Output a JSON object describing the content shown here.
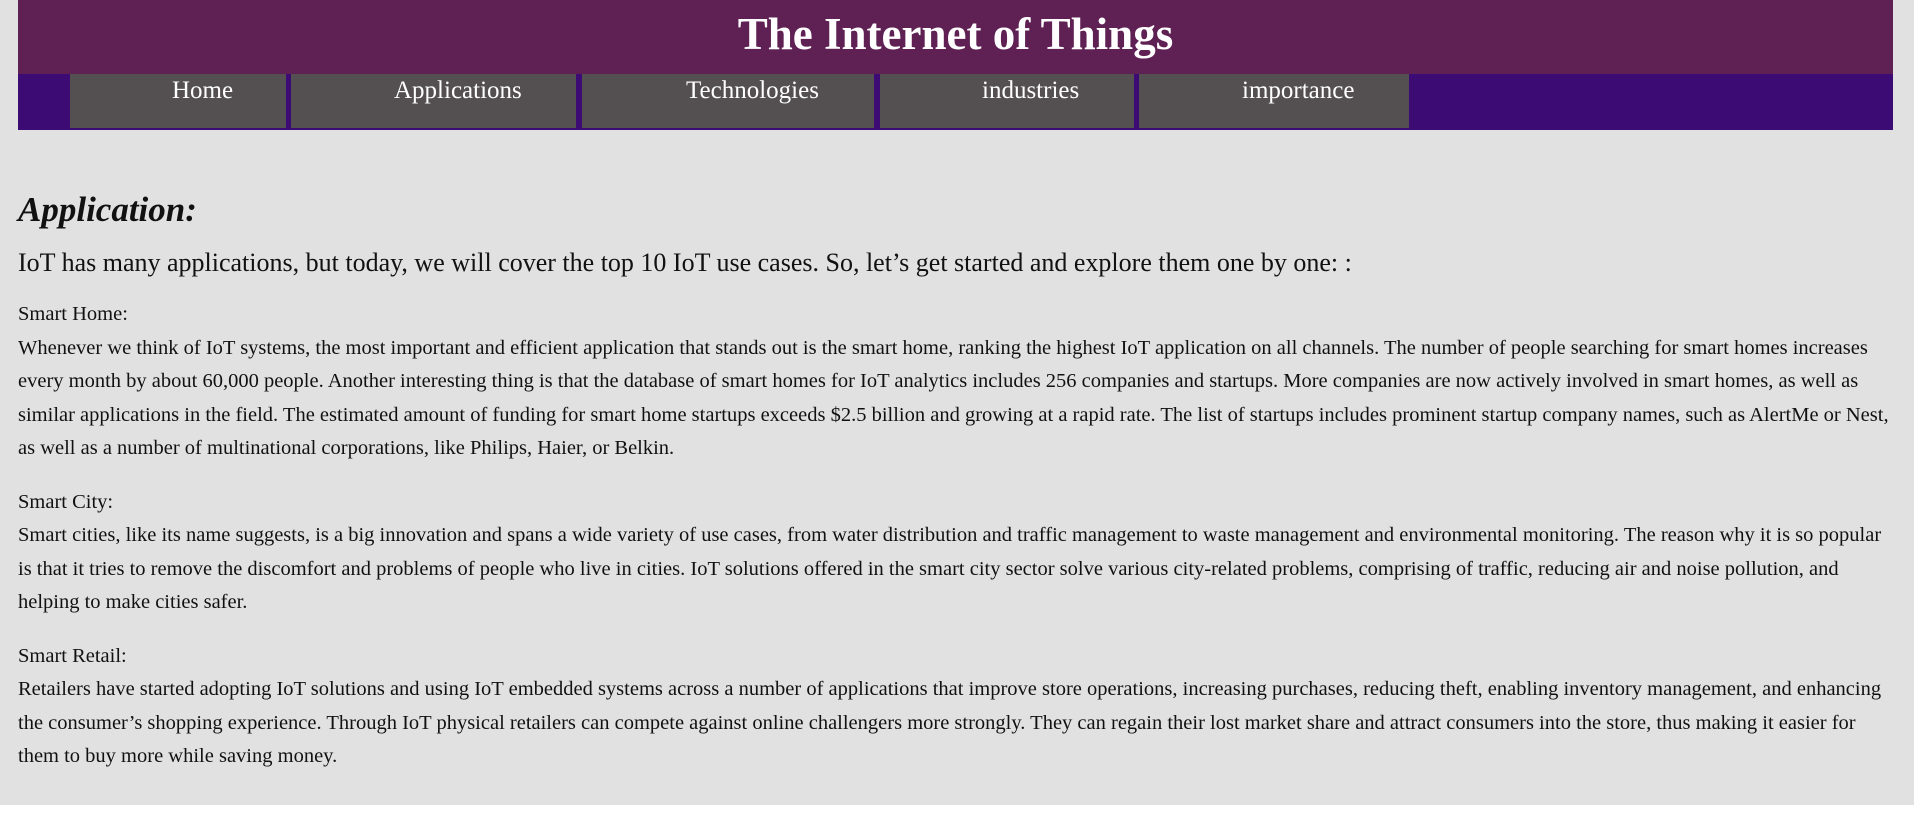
{
  "header": {
    "title": "The Internet of Things"
  },
  "nav": {
    "items": [
      {
        "label": "Home"
      },
      {
        "label": "Applications"
      },
      {
        "label": "Technologies"
      },
      {
        "label": "industries"
      },
      {
        "label": "importance"
      }
    ]
  },
  "colors": {
    "banner": "#5f2153",
    "navbar": "#3c0c74",
    "nav_item": "#545052",
    "page_background": "#e1e1e1"
  },
  "main": {
    "heading": "Application:",
    "intro": "IoT has many applications, but today, we will cover the top 10 IoT use cases. So, let’s get started and explore them one by one: :",
    "sections": [
      {
        "title": "Smart Home:",
        "text": "Whenever we think of IoT systems, the most important and efficient application that stands out is the smart home, ranking the highest IoT application on all channels. The number of people searching for smart homes increases every month by about 60,000 people. Another interesting thing is that the database of smart homes for IoT analytics includes 256 companies and startups. More companies are now actively involved in smart homes, as well as similar applications in the field. The estimated amount of funding for smart home startups exceeds $2.5 billion and growing at a rapid rate. The list of startups includes prominent startup company names, such as AlertMe or Nest, as well as a number of multinational corporations, like Philips, Haier, or Belkin."
      },
      {
        "title": "Smart City:",
        "text": "Smart cities, like its name suggests, is a big innovation and spans a wide variety of use cases, from water distribution and traffic management to waste management and environmental monitoring. The reason why it is so popular is that it tries to remove the discomfort and problems of people who live in cities. IoT solutions offered in the smart city sector solve various city-related problems, comprising of traffic, reducing air and noise pollution, and helping to make cities safer."
      },
      {
        "title": "Smart Retail:",
        "text": "Retailers have started adopting IoT solutions and using IoT embedded systems across a number of applications that improve store operations, increasing purchases, reducing theft, enabling inventory management, and enhancing the consumer’s shopping experience. Through IoT physical retailers can compete against online challengers more strongly. They can regain their lost market share and attract consumers into the store, thus making it easier for them to buy more while saving money."
      }
    ]
  }
}
